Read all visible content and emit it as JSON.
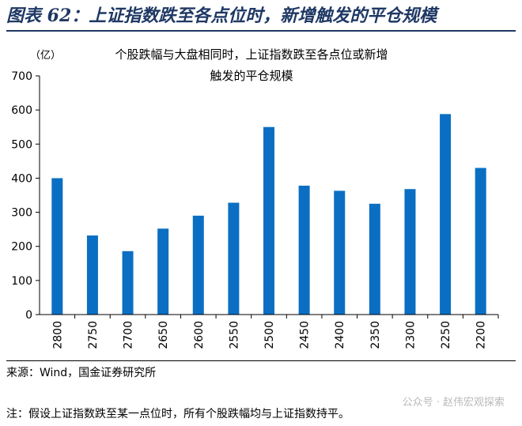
{
  "figure": {
    "title": "图表 62：上证指数跌至各点位时，新增触发的平仓规模",
    "source": "来源：Wind，国金证券研究所",
    "note": "注：假设上证指数跌至某一点位时，所有个股跌幅均与上证指数持平。",
    "watermark": "公众号 · 赵伟宏观探索"
  },
  "chart_data": {
    "type": "bar",
    "title_lines": [
      "个股跌幅与大盘相同时，上证指数跌至各点位或新增",
      "触发的平仓规模"
    ],
    "ylabel": "（亿）",
    "xlabel": "",
    "ylim": [
      0,
      700
    ],
    "yticks": [
      0,
      100,
      200,
      300,
      400,
      500,
      600,
      700
    ],
    "categories": [
      "2800",
      "2750",
      "2700",
      "2650",
      "2600",
      "2550",
      "2500",
      "2450",
      "2400",
      "2350",
      "2300",
      "2250",
      "2200"
    ],
    "values": [
      400,
      232,
      186,
      252,
      290,
      328,
      550,
      378,
      363,
      325,
      368,
      588,
      430
    ],
    "bar_color": "#0a6fc2",
    "grid": false,
    "legend": "none"
  }
}
